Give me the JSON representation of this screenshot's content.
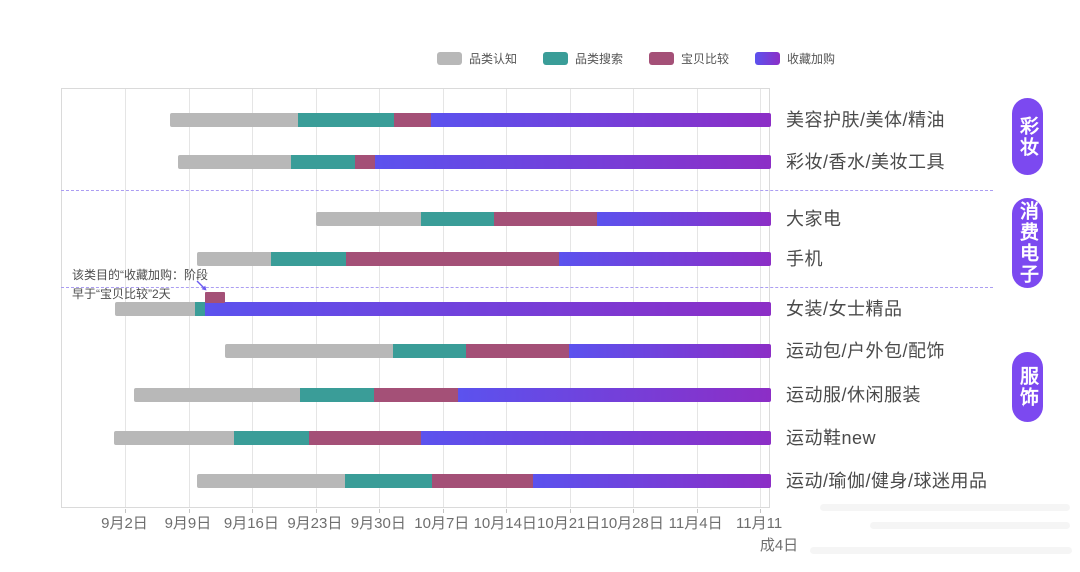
{
  "legend": {
    "items": [
      {
        "label": "品类认知",
        "color": "#b8b8b8"
      },
      {
        "label": "品类搜索",
        "color": "#3a9d98"
      },
      {
        "label": "宝贝比较",
        "color": "#a45077"
      },
      {
        "label": "收藏加购",
        "color": "#5b52ee",
        "color_end": "#8c2ec6"
      }
    ]
  },
  "colors": {
    "bar_gray": "#b8b8b8",
    "bar_teal": "#3a9d98",
    "bar_rose": "#a45077",
    "bar_purple_start": "#5b52ee",
    "bar_purple_end": "#8c2ec6",
    "badge_purple": "#7c49f0",
    "separator_dashed": "#ab9df2",
    "annotation_arrow": "#6a5af0"
  },
  "chart_data": {
    "type": "bar",
    "subtype": "gantt-phase-timeline",
    "orientation": "horizontal",
    "stacked": true,
    "phases": [
      "品类认知",
      "品类搜索",
      "宝贝比较",
      "收藏加购"
    ],
    "x_axis": {
      "tick_labels": [
        "9月2日",
        "9月9日",
        "9月16日",
        "9月23日",
        "9月30日",
        "10月7日",
        "10月14日",
        "10月21日",
        "10月28日",
        "11月4日",
        "11月11"
      ],
      "extra_label": "成4日",
      "first_tick_day": 7,
      "days_per_tick": 7,
      "range_days": [
        0,
        78.2
      ],
      "range_start_date": "8月26日",
      "grid": "vertical-weekly"
    },
    "groups": [
      {
        "badge": "彩妆",
        "rows": [
          "美容护肤/美体/精油",
          "彩妆/香水/美妆工具"
        ]
      },
      {
        "badge": "消费电子",
        "rows": [
          "大家电",
          "手机"
        ]
      },
      {
        "badge": "服饰",
        "rows": [
          "女装/女士精品",
          "运动包/户外包/配饰",
          "运动服/休闲服装",
          "运动鞋new",
          "运动/瑜伽/健身/球迷用品"
        ]
      }
    ],
    "rows": [
      {
        "label": "美容护肤/美体/精油",
        "segments": [
          {
            "phase": "品类认知",
            "start_day": 11.9,
            "end_day": 26.0,
            "start_date": "9月7日",
            "end_date": "9月21日"
          },
          {
            "phase": "品类搜索",
            "start_day": 26.0,
            "end_day": 36.6,
            "start_date": "9月21日",
            "end_date": "10月2日"
          },
          {
            "phase": "宝贝比较",
            "start_day": 36.6,
            "end_day": 40.7,
            "start_date": "10月2日",
            "end_date": "10月6日"
          },
          {
            "phase": "收藏加购",
            "start_day": 40.7,
            "end_day": 78.2,
            "start_date": "10月6日",
            "end_date": "11月12日"
          }
        ]
      },
      {
        "label": "彩妆/香水/美妆工具",
        "segments": [
          {
            "phase": "品类认知",
            "start_day": 12.8,
            "end_day": 25.3,
            "start_date": "9月8日",
            "end_date": "9月20日"
          },
          {
            "phase": "品类搜索",
            "start_day": 25.3,
            "end_day": 32.3,
            "start_date": "9月20日",
            "end_date": "9月27日"
          },
          {
            "phase": "宝贝比较",
            "start_day": 32.3,
            "end_day": 34.5,
            "start_date": "9月27日",
            "end_date": "9月29日"
          },
          {
            "phase": "收藏加购",
            "start_day": 34.5,
            "end_day": 78.2,
            "start_date": "9月29日",
            "end_date": "11月12日"
          }
        ]
      },
      {
        "label": "大家电",
        "segments": [
          {
            "phase": "品类认知",
            "start_day": 28.0,
            "end_day": 39.6,
            "start_date": "9月23日",
            "end_date": "10月5日"
          },
          {
            "phase": "品类搜索",
            "start_day": 39.6,
            "end_day": 47.6,
            "start_date": "10月5日",
            "end_date": "10月13日"
          },
          {
            "phase": "宝贝比较",
            "start_day": 47.6,
            "end_day": 59.0,
            "start_date": "10月13日",
            "end_date": "10月24日"
          },
          {
            "phase": "收藏加购",
            "start_day": 59.0,
            "end_day": 78.2,
            "start_date": "10月24日",
            "end_date": "11月12日"
          }
        ]
      },
      {
        "label": "手机",
        "segments": [
          {
            "phase": "品类认知",
            "start_day": 14.9,
            "end_day": 23.1,
            "start_date": "9月10日",
            "end_date": "9月18日"
          },
          {
            "phase": "品类搜索",
            "start_day": 23.1,
            "end_day": 31.3,
            "start_date": "9月18日",
            "end_date": "9月26日"
          },
          {
            "phase": "宝贝比较",
            "start_day": 31.3,
            "end_day": 54.8,
            "start_date": "9月26日",
            "end_date": "10月20日"
          },
          {
            "phase": "收藏加购",
            "start_day": 54.8,
            "end_day": 78.2,
            "start_date": "10月20日",
            "end_date": "11月12日"
          }
        ]
      },
      {
        "label": "女装/女士精品",
        "segments": [
          {
            "phase": "品类认知",
            "start_day": 5.8,
            "end_day": 14.7,
            "start_date": "9月1日",
            "end_date": "9月10日"
          },
          {
            "phase": "品类搜索",
            "start_day": 14.7,
            "end_day": 15.8,
            "start_date": "9月10日",
            "end_date": "9月11日"
          },
          {
            "phase": "收藏加购",
            "start_day": 15.8,
            "end_day": 78.2,
            "start_date": "9月11日",
            "end_date": "11月12日"
          },
          {
            "phase": "宝贝比较",
            "start_day": 15.8,
            "end_day": 18.0,
            "start_date": "9月11日",
            "end_date": "9月13日",
            "floating": true
          }
        ]
      },
      {
        "label": "运动包/户外包/配饰",
        "segments": [
          {
            "phase": "品类认知",
            "start_day": 18.0,
            "end_day": 36.5,
            "start_date": "9月13日",
            "end_date": "10月1日"
          },
          {
            "phase": "品类搜索",
            "start_day": 36.5,
            "end_day": 44.6,
            "start_date": "10月1日",
            "end_date": "10月10日"
          },
          {
            "phase": "宝贝比较",
            "start_day": 44.6,
            "end_day": 55.9,
            "start_date": "10月10日",
            "end_date": "10月21日"
          },
          {
            "phase": "收藏加购",
            "start_day": 55.9,
            "end_day": 78.2,
            "start_date": "10月21日",
            "end_date": "11月12日"
          }
        ]
      },
      {
        "label": "运动服/休闲服装",
        "segments": [
          {
            "phase": "品类认知",
            "start_day": 7.9,
            "end_day": 26.3,
            "start_date": "9月3日",
            "end_date": "9月21日"
          },
          {
            "phase": "品类搜索",
            "start_day": 26.3,
            "end_day": 34.4,
            "start_date": "9月21日",
            "end_date": "9月29日"
          },
          {
            "phase": "宝贝比较",
            "start_day": 34.4,
            "end_day": 43.7,
            "start_date": "9月29日",
            "end_date": "10月9日"
          },
          {
            "phase": "收藏加购",
            "start_day": 43.7,
            "end_day": 78.2,
            "start_date": "10月9日",
            "end_date": "11月12日"
          }
        ]
      },
      {
        "label": "运动鞋new",
        "segments": [
          {
            "phase": "品类认知",
            "start_day": 5.7,
            "end_day": 19.0,
            "start_date": "9月1日",
            "end_date": "9月14日"
          },
          {
            "phase": "品类搜索",
            "start_day": 19.0,
            "end_day": 27.2,
            "start_date": "9月14日",
            "end_date": "9月22日"
          },
          {
            "phase": "宝贝比较",
            "start_day": 27.2,
            "end_day": 39.6,
            "start_date": "9月22日",
            "end_date": "10月5日"
          },
          {
            "phase": "收藏加购",
            "start_day": 39.6,
            "end_day": 78.2,
            "start_date": "10月5日",
            "end_date": "11月12日"
          }
        ]
      },
      {
        "label": "运动/瑜伽/健身/球迷用品",
        "segments": [
          {
            "phase": "品类认知",
            "start_day": 14.9,
            "end_day": 31.2,
            "start_date": "9月10日",
            "end_date": "9月26日"
          },
          {
            "phase": "品类搜索",
            "start_day": 31.2,
            "end_day": 40.8,
            "start_date": "9月26日",
            "end_date": "10月6日"
          },
          {
            "phase": "宝贝比较",
            "start_day": 40.8,
            "end_day": 52.0,
            "start_date": "10月6日",
            "end_date": "10月17日"
          },
          {
            "phase": "收藏加购",
            "start_day": 52.0,
            "end_day": 78.2,
            "start_date": "10月17日",
            "end_date": "11月12日"
          }
        ]
      }
    ],
    "annotation": {
      "line1": "该类目的“收藏加购：阶段",
      "line2": "早于“宝贝比较”2天",
      "target_row": "女装/女士精品"
    }
  }
}
